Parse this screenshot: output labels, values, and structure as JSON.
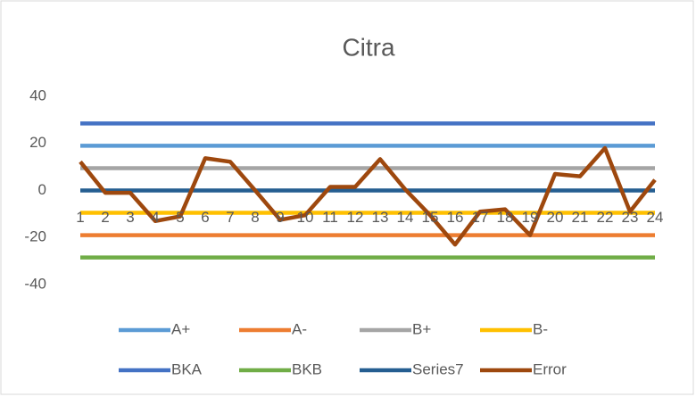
{
  "chart_data": {
    "type": "line",
    "title": "Citra",
    "categories": [
      "1",
      "2",
      "3",
      "4",
      "5",
      "6",
      "7",
      "8",
      "9",
      "10",
      "11",
      "12",
      "13",
      "14",
      "15",
      "16",
      "17",
      "18",
      "19",
      "20",
      "21",
      "22",
      "23",
      "24"
    ],
    "ylim": [
      -40,
      40
    ],
    "yticks": [
      -40,
      -20,
      0,
      20,
      40
    ],
    "grid": false,
    "series": [
      {
        "name": "A+",
        "color": "#5b9bd5",
        "values": [
          19,
          19,
          19,
          19,
          19,
          19,
          19,
          19,
          19,
          19,
          19,
          19,
          19,
          19,
          19,
          19,
          19,
          19,
          19,
          19,
          19,
          19,
          19,
          19
        ]
      },
      {
        "name": "A-",
        "color": "#ed7d31",
        "values": [
          -19,
          -19,
          -19,
          -19,
          -19,
          -19,
          -19,
          -19,
          -19,
          -19,
          -19,
          -19,
          -19,
          -19,
          -19,
          -19,
          -19,
          -19,
          -19,
          -19,
          -19,
          -19,
          -19,
          -19
        ]
      },
      {
        "name": "B+",
        "color": "#a5a5a5",
        "values": [
          9.5,
          9.5,
          9.5,
          9.5,
          9.5,
          9.5,
          9.5,
          9.5,
          9.5,
          9.5,
          9.5,
          9.5,
          9.5,
          9.5,
          9.5,
          9.5,
          9.5,
          9.5,
          9.5,
          9.5,
          9.5,
          9.5,
          9.5,
          9.5
        ]
      },
      {
        "name": "B-",
        "color": "#ffc000",
        "values": [
          -9.5,
          -9.5,
          -9.5,
          -9.5,
          -9.5,
          -9.5,
          -9.5,
          -9.5,
          -9.5,
          -9.5,
          -9.5,
          -9.5,
          -9.5,
          -9.5,
          -9.5,
          -9.5,
          -9.5,
          -9.5,
          -9.5,
          -9.5,
          -9.5,
          -9.5,
          -9.5,
          -9.5
        ]
      },
      {
        "name": "BKA",
        "color": "#4472c4",
        "values": [
          28.5,
          28.5,
          28.5,
          28.5,
          28.5,
          28.5,
          28.5,
          28.5,
          28.5,
          28.5,
          28.5,
          28.5,
          28.5,
          28.5,
          28.5,
          28.5,
          28.5,
          28.5,
          28.5,
          28.5,
          28.5,
          28.5,
          28.5,
          28.5
        ]
      },
      {
        "name": "BKB",
        "color": "#70ad47",
        "values": [
          -28.5,
          -28.5,
          -28.5,
          -28.5,
          -28.5,
          -28.5,
          -28.5,
          -28.5,
          -28.5,
          -28.5,
          -28.5,
          -28.5,
          -28.5,
          -28.5,
          -28.5,
          -28.5,
          -28.5,
          -28.5,
          -28.5,
          -28.5,
          -28.5,
          -28.5,
          -28.5,
          -28.5
        ]
      },
      {
        "name": "Series7",
        "color": "#255e91",
        "values": [
          0,
          0,
          0,
          0,
          0,
          0,
          0,
          0,
          0,
          0,
          0,
          0,
          0,
          0,
          0,
          0,
          0,
          0,
          0,
          0,
          0,
          0,
          0,
          0
        ]
      },
      {
        "name": "Error",
        "color": "#9e480e",
        "values": [
          12.2,
          -1,
          -1,
          -13,
          -11,
          13.7,
          12.2,
          0,
          -12.5,
          -10.5,
          1.5,
          1.5,
          13.3,
          0.5,
          -10.5,
          -23,
          -9,
          -8,
          -19,
          7,
          6,
          18,
          -9,
          4.5
        ]
      }
    ]
  }
}
